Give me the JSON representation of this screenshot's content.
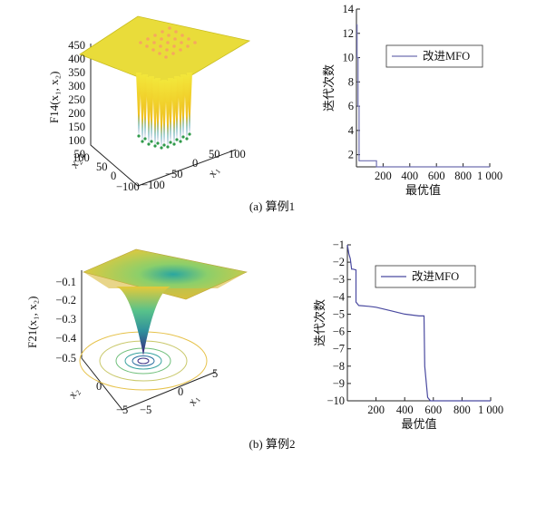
{
  "figure": {
    "caption_a": "(a) 算例1",
    "caption_b": "(b) 算例2"
  },
  "surface_a": {
    "zlabel": "F14(x₁, x₂)",
    "z_ticks": [
      "450",
      "400",
      "350",
      "300",
      "250",
      "200",
      "150",
      "100",
      "50"
    ],
    "x_ticks": [
      "100",
      "50",
      "0",
      "−50",
      "−100"
    ],
    "y_ticks": [
      "100",
      "50",
      "0",
      "−50",
      "−100"
    ],
    "xlabel": "x₁",
    "ylabel": "x₂"
  },
  "surface_b": {
    "zlabel": "F21(x₁, x₂)",
    "z_ticks": [
      "−0.1",
      "−0.2",
      "−0.3",
      "−0.4",
      "−0.5"
    ],
    "x_ticks": [
      "5",
      "0",
      "−5"
    ],
    "y_ticks": [
      "5",
      "0",
      "−5"
    ],
    "xlabel": "x₁",
    "ylabel": "x₂"
  },
  "chart_data": [
    {
      "type": "line",
      "title": "",
      "xlabel": "最优值",
      "ylabel": "迭代次数",
      "xlim": [
        0,
        1000
      ],
      "ylim": [
        1,
        14
      ],
      "x_ticks": [
        200,
        400,
        600,
        800,
        1000
      ],
      "x_tick_labels": [
        "200",
        "400",
        "600",
        "800",
        "1 000"
      ],
      "y_ticks": [
        2,
        4,
        6,
        8,
        10,
        12,
        14
      ],
      "y_tick_labels": [
        "2",
        "4",
        "6",
        "8",
        "10",
        "12",
        "14"
      ],
      "legend": "top-right",
      "series": [
        {
          "name": "改进MFO",
          "color": "#6f6fb0",
          "x": [
            0,
            5,
            5,
            12,
            12,
            20,
            20,
            150,
            150,
            1000
          ],
          "y": [
            12.7,
            12.7,
            10,
            10,
            6,
            6,
            1.5,
            1.5,
            1.0,
            1.0
          ]
        }
      ]
    },
    {
      "type": "line",
      "title": "",
      "xlabel": "最优值",
      "ylabel": "迭代次数",
      "xlim": [
        0,
        1000
      ],
      "ylim": [
        -10,
        -1
      ],
      "x_ticks": [
        200,
        400,
        600,
        800,
        1000
      ],
      "x_tick_labels": [
        "200",
        "400",
        "600",
        "800",
        "1 000"
      ],
      "y_ticks": [
        -1,
        -2,
        -3,
        -4,
        -5,
        -6,
        -7,
        -8,
        -9,
        -10
      ],
      "y_tick_labels": [
        "−1",
        "−2",
        "−3",
        "−4",
        "−5",
        "−6",
        "−7",
        "−8",
        "−9",
        "−10"
      ],
      "legend": "top-right",
      "series": [
        {
          "name": "改进MFO",
          "color": "#4a4aa0",
          "x": [
            0,
            10,
            20,
            30,
            40,
            60,
            60,
            80,
            150,
            200,
            300,
            400,
            500,
            535,
            540,
            560,
            580,
            1000
          ],
          "y": [
            -1.0,
            -1.5,
            -1.8,
            -2.4,
            -2.4,
            -2.45,
            -4.3,
            -4.5,
            -4.55,
            -4.6,
            -4.8,
            -5.0,
            -5.1,
            -5.1,
            -8.0,
            -9.8,
            -10.0,
            -10.0
          ]
        }
      ]
    }
  ]
}
